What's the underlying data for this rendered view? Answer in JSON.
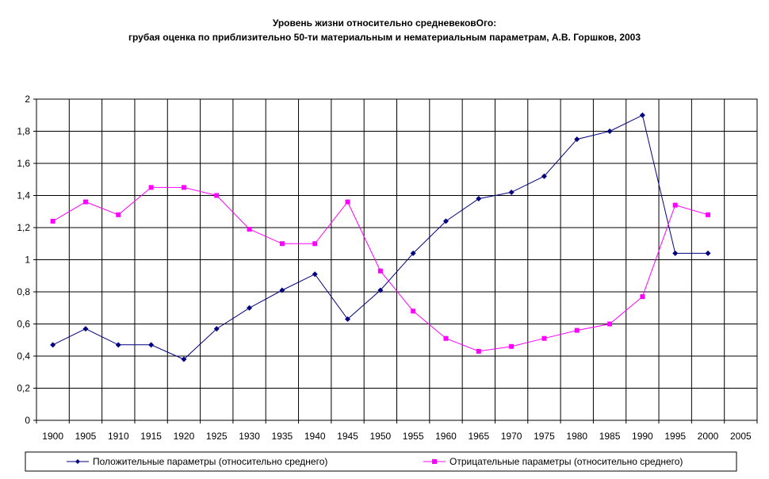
{
  "chart_data": {
    "type": "line",
    "title_line1": "Уровень жизни относительно средневековОго:",
    "title_line2": "грубая оценка по приблизительно 50-ти материальным и нематериальным параметрам, А.В. Горшков, 2003",
    "categories": [
      "1900",
      "1905",
      "1910",
      "1915",
      "1920",
      "1925",
      "1930",
      "1935",
      "1940",
      "1945",
      "1950",
      "1955",
      "1960",
      "1965",
      "1970",
      "1975",
      "1980",
      "1985",
      "1990",
      "1995",
      "2000",
      "2005"
    ],
    "y_tick_labels": [
      "0",
      "0,2",
      "0,4",
      "0,6",
      "0,8",
      "1",
      "1,2",
      "1,4",
      "1,6",
      "1,8",
      "2"
    ],
    "ylim": [
      0,
      2
    ],
    "grid": true,
    "legend_position": "bottom",
    "series": [
      {
        "name": "Положительные параметры (относительно среднего)",
        "color": "#000080",
        "marker": "diamond",
        "values": [
          0.47,
          0.57,
          0.47,
          0.47,
          0.38,
          0.57,
          0.7,
          0.81,
          0.91,
          0.63,
          0.81,
          1.04,
          1.24,
          1.38,
          1.42,
          1.52,
          1.75,
          1.8,
          1.9,
          1.04,
          1.04,
          null
        ]
      },
      {
        "name": "Отрицательные параметры (относительно среднего)",
        "color": "#FF00FF",
        "marker": "square",
        "values": [
          1.24,
          1.36,
          1.28,
          1.45,
          1.45,
          1.4,
          1.19,
          1.1,
          1.1,
          1.36,
          0.93,
          0.68,
          0.51,
          0.43,
          0.46,
          0.51,
          0.56,
          0.6,
          0.77,
          1.34,
          1.28,
          null
        ]
      }
    ]
  }
}
